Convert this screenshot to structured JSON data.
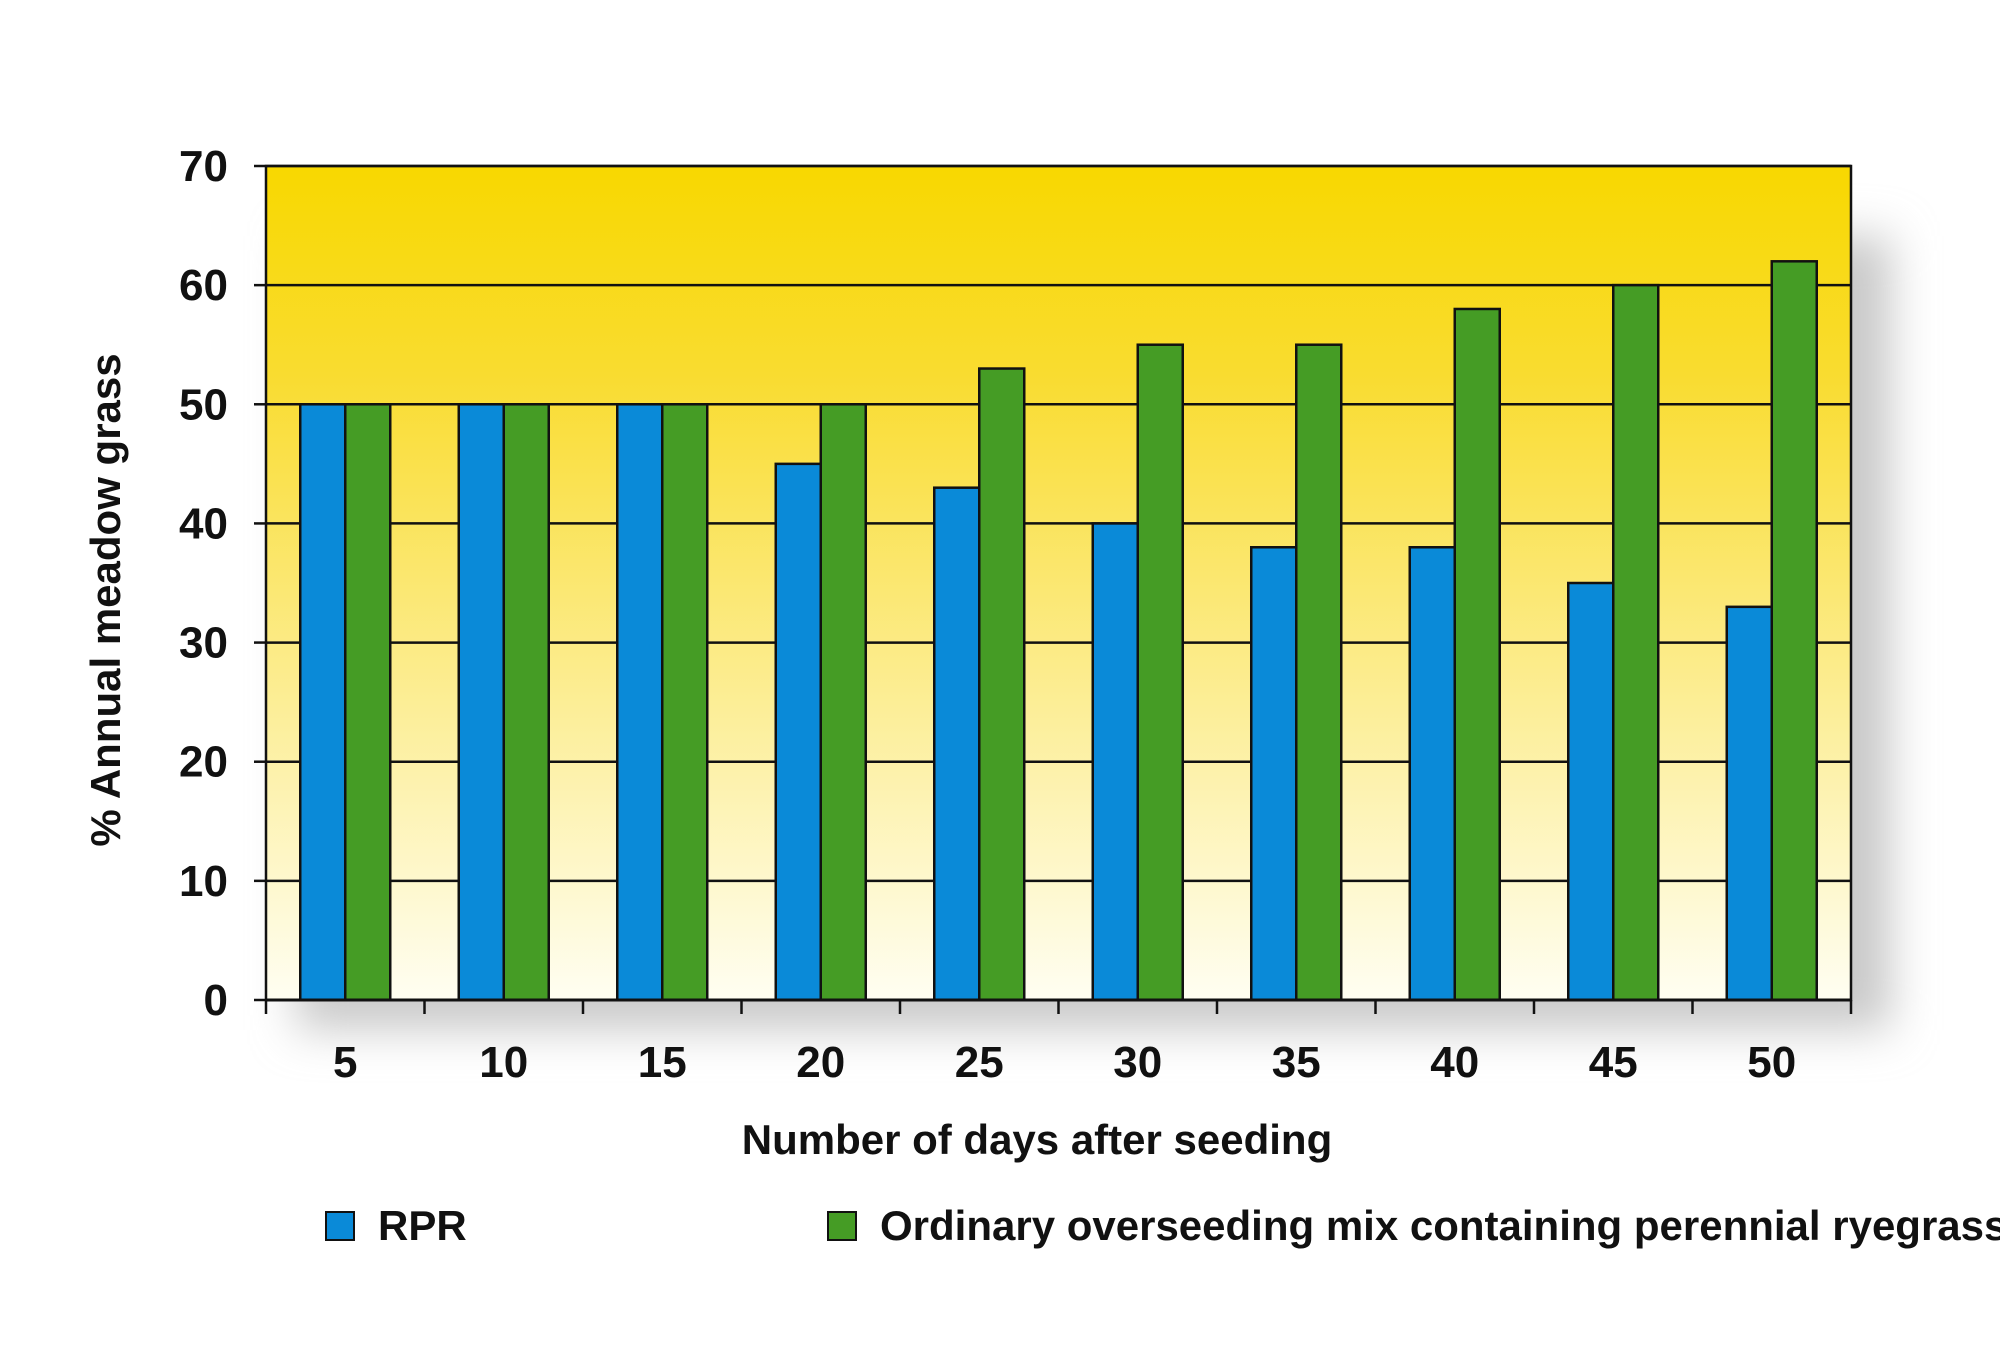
{
  "chart_data": {
    "type": "bar",
    "xlabel": "Number of days after seeding",
    "ylabel": "% Annual meadow grass",
    "categories": [
      "5",
      "10",
      "15",
      "20",
      "25",
      "30",
      "35",
      "40",
      "45",
      "50"
    ],
    "ylim": [
      0,
      70
    ],
    "yticks": [
      0,
      10,
      20,
      30,
      40,
      50,
      60,
      70
    ],
    "grid": true,
    "legend_position": "bottom",
    "series": [
      {
        "name": "RPR",
        "color": "#0a8ad8",
        "values": [
          50,
          50,
          50,
          45,
          43,
          40,
          38,
          38,
          35,
          33
        ]
      },
      {
        "name": "Ordinary overseeding mix containing perennial ryegrass",
        "color": "#459c25",
        "values": [
          50,
          50,
          50,
          50,
          53,
          55,
          55,
          58,
          60,
          62
        ]
      }
    ],
    "background_gradient": [
      "#f8d800",
      "#fffef2"
    ]
  }
}
